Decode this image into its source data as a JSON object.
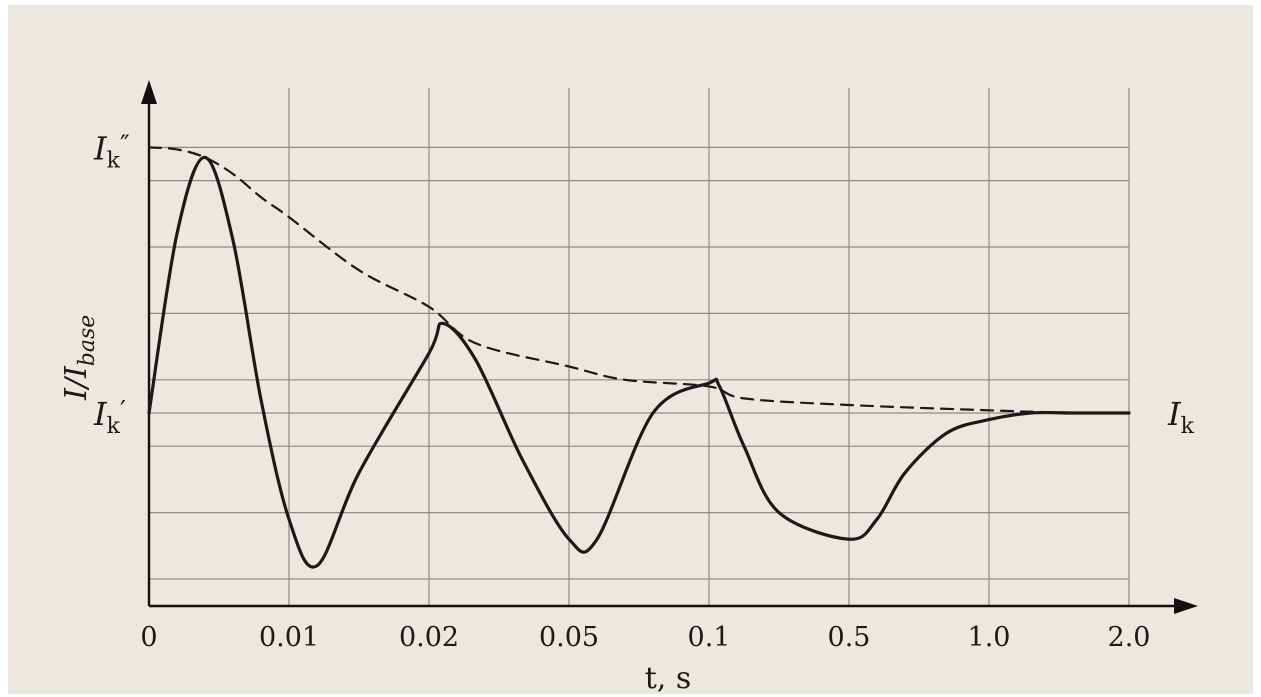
{
  "chart_data": {
    "type": "line",
    "xlabel": "t, s",
    "ylabel": "I/I",
    "ylabel_subscript": "base",
    "x_tick_labels": [
      "0",
      "0.01",
      "0.02",
      "0.05",
      "0.1",
      "0.5",
      "1.0",
      "2.0"
    ],
    "x_scale": "piecewise (tick labels equally spaced)",
    "grid": true,
    "levels": [
      {
        "label": "I",
        "sub": "k",
        "prime": "″",
        "y": 4.0,
        "side": "left"
      },
      {
        "label": "I",
        "sub": "k",
        "prime": "′",
        "y": 0.0,
        "side": "left"
      },
      {
        "label": "I",
        "sub": "k",
        "prime": "",
        "y": 0.0,
        "side": "right"
      }
    ],
    "ylim": [
      -3.0,
      5.0
    ],
    "series": [
      {
        "style": "solid",
        "x": [
          0,
          0.002,
          0.004,
          0.006,
          0.008,
          0.01,
          0.012,
          0.015,
          0.02,
          0.023,
          0.03,
          0.04,
          0.05,
          0.06,
          0.08,
          0.1,
          0.13,
          0.2,
          0.3,
          0.5,
          0.6,
          0.7,
          0.85,
          1.0,
          1.3,
          1.6,
          2.0
        ],
        "y": [
          0.0,
          2.7,
          3.85,
          2.6,
          0.2,
          -1.6,
          -2.3,
          -0.9,
          0.9,
          1.35,
          0.8,
          -0.7,
          -1.9,
          -1.9,
          0.0,
          0.45,
          0.4,
          -0.5,
          -1.5,
          -1.9,
          -1.6,
          -0.9,
          -0.3,
          -0.1,
          0.0,
          0.0,
          0.0
        ]
      },
      {
        "style": "dashed",
        "x": [
          0,
          0.002,
          0.004,
          0.006,
          0.008,
          0.01,
          0.015,
          0.02,
          0.03,
          0.05,
          0.07,
          0.1,
          0.2,
          0.5,
          1.0,
          1.5,
          2.0
        ],
        "y": [
          4.0,
          3.97,
          3.85,
          3.6,
          3.25,
          2.95,
          2.15,
          1.6,
          1.05,
          0.7,
          0.5,
          0.4,
          0.22,
          0.12,
          0.04,
          0.01,
          0.0
        ]
      }
    ]
  }
}
